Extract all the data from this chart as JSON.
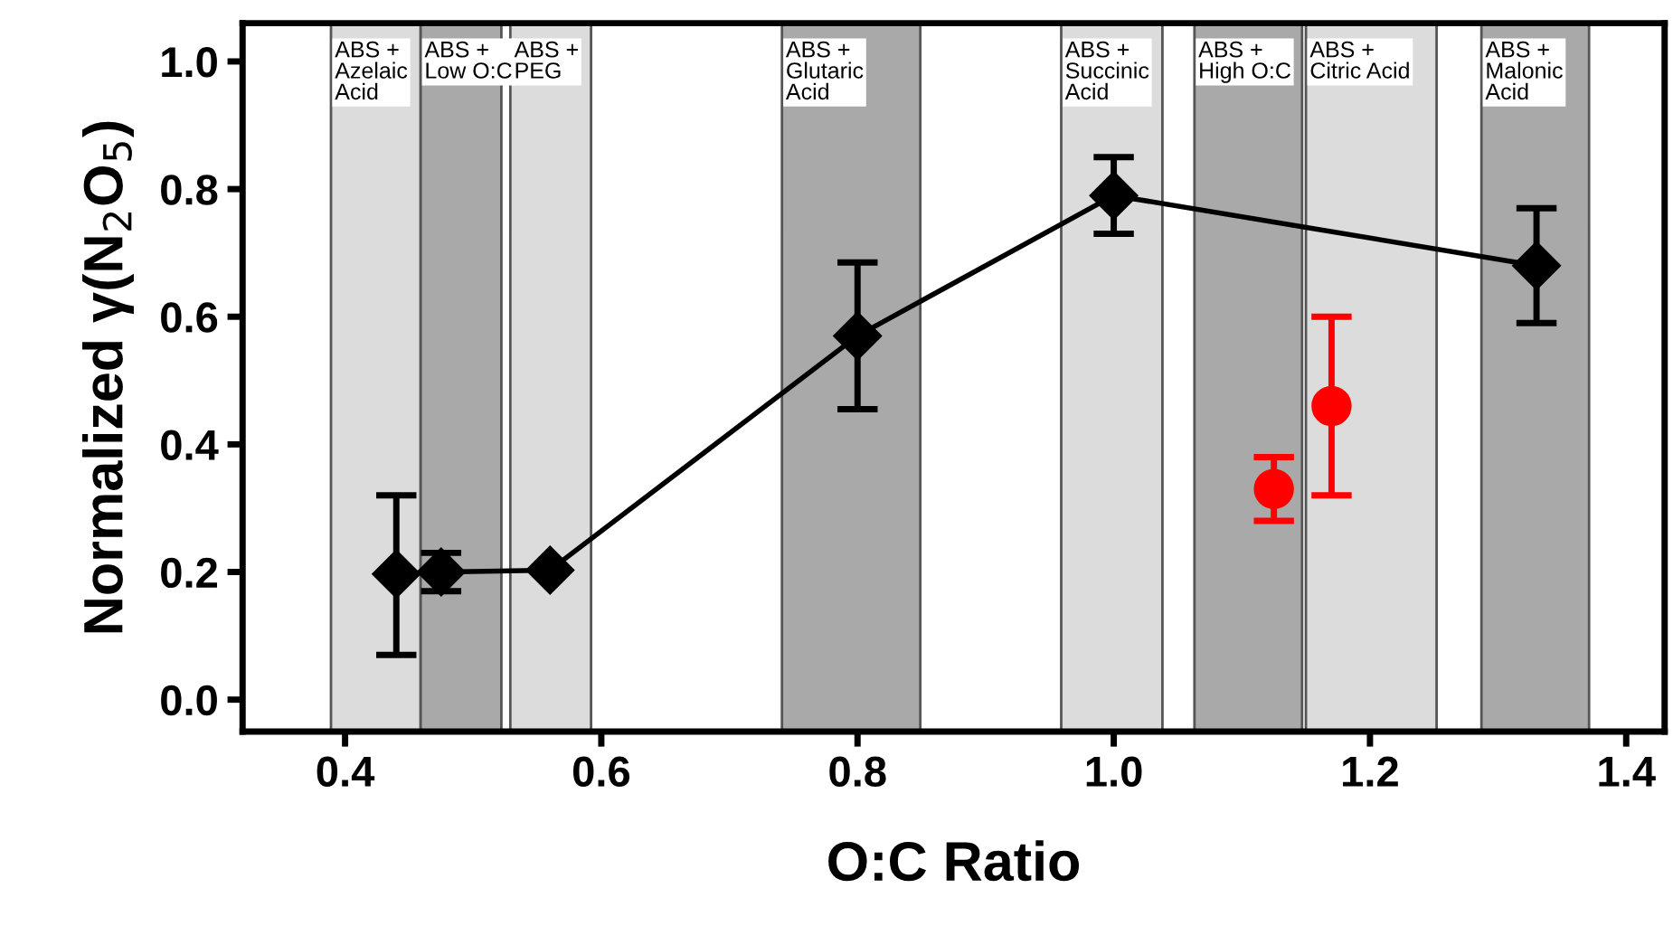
{
  "chart_data": {
    "type": "line",
    "xlabel": "O:C Ratio",
    "ylabel": "Normalized γ(N$_{2}$O$_{5}$)",
    "xlim": [
      0.32,
      1.43
    ],
    "ylim": [
      -0.05,
      1.06
    ],
    "xticks": [
      {
        "value": 0.4,
        "label": "0.4"
      },
      {
        "value": 0.6,
        "label": "0.6"
      },
      {
        "value": 0.8,
        "label": "0.8"
      },
      {
        "value": 1.0,
        "label": "1.0"
      },
      {
        "value": 1.2,
        "label": "1.2"
      },
      {
        "value": 1.4,
        "label": "1.4"
      }
    ],
    "yticks": [
      {
        "value": 0.0,
        "label": "0.0"
      },
      {
        "value": 0.2,
        "label": "0.2"
      },
      {
        "value": 0.4,
        "label": "0.4"
      },
      {
        "value": 0.6,
        "label": "0.6"
      },
      {
        "value": 0.8,
        "label": "0.8"
      },
      {
        "value": 1.0,
        "label": "1.0"
      }
    ],
    "grid": false,
    "legend": false,
    "series": [
      {
        "color": "#000000",
        "marker": "diamond",
        "line_style": "solid",
        "x": [
          0.44,
          0.475,
          0.56,
          0.8,
          1.0,
          1.33
        ],
        "values": [
          0.197,
          0.2,
          0.203,
          0.57,
          0.79,
          0.68
        ],
        "errors": [
          [
            0.07,
            0.32
          ],
          [
            0.17,
            0.23
          ],
          null,
          [
            0.455,
            0.685
          ],
          [
            0.73,
            0.85
          ],
          [
            0.59,
            0.77
          ]
        ]
      },
      {
        "type": "scatter",
        "color": "#ff0000",
        "marker": "circle",
        "x": [
          1.125,
          1.17
        ],
        "values": [
          0.33,
          0.46
        ],
        "errors": [
          [
            0.28,
            0.38
          ],
          [
            0.32,
            0.6
          ]
        ]
      }
    ],
    "bands": [
      {
        "axis": "x",
        "from": 0.389,
        "to": 0.459,
        "label": "ABS +\nAzelaic\nAcid",
        "color": "#dcdcdc"
      },
      {
        "axis": "x",
        "from": 0.459,
        "to": 0.522,
        "label": "ABS +\nLow O:C",
        "color": "#a9a9a9"
      },
      {
        "axis": "x",
        "from": 0.529,
        "to": 0.592,
        "label": "ABS +\nPEG",
        "color": "#dcdcdc"
      },
      {
        "axis": "x",
        "from": 0.741,
        "to": 0.849,
        "label": "ABS +\nGlutaric\nAcid",
        "color": "#a9a9a9"
      },
      {
        "axis": "x",
        "from": 0.959,
        "to": 1.038,
        "label": "ABS +\nSuccinic\nAcid",
        "color": "#dcdcdc"
      },
      {
        "axis": "x",
        "from": 1.063,
        "to": 1.147,
        "label": "ABS +\nHigh O:C",
        "color": "#a9a9a9"
      },
      {
        "axis": "x",
        "from": 1.15,
        "to": 1.252,
        "label": "ABS +\nCitric Acid",
        "color": "#dcdcdc"
      },
      {
        "axis": "x",
        "from": 1.287,
        "to": 1.371,
        "label": "ABS +\nMalonic\nAcid",
        "color": "#a9a9a9"
      }
    ]
  }
}
